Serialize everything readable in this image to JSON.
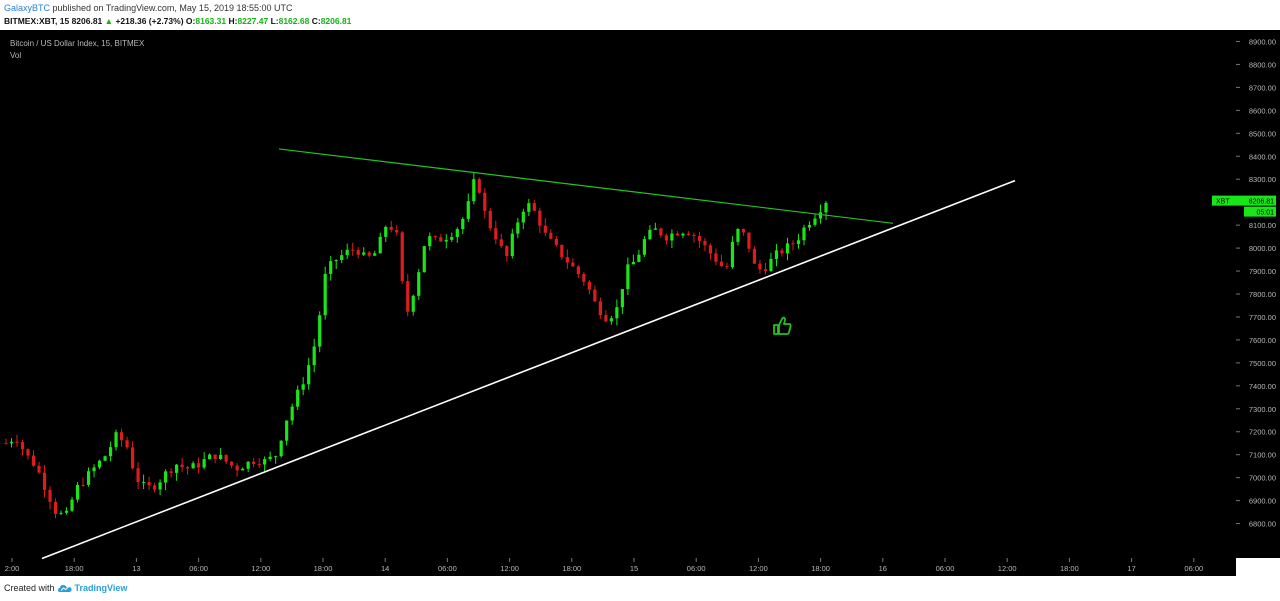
{
  "header": {
    "publisher": "GalaxyBTC",
    "published_text": " published on TradingView.com, May 15, 2019 18:55:00 UTC",
    "symbol": "BITMEX:XBT, 15",
    "last": "8206.81",
    "change_arrow": "▲",
    "change": "+218.36 (+2.73%)",
    "open_label": "O:",
    "open": "8163.31",
    "high_label": "H:",
    "high": "8227.47",
    "low_label": "L:",
    "low": "8162.68",
    "close_label": "C:",
    "close": "8206.81"
  },
  "chart_data": {
    "type": "candlestick",
    "title": "Bitcoin / US Dollar Index, 15, BITMEX",
    "subtitle": "Vol",
    "ylim": [
      6650,
      8950
    ],
    "y_ticks": [
      "6800.00",
      "6900.00",
      "7000.00",
      "7100.00",
      "7200.00",
      "7300.00",
      "7400.00",
      "7500.00",
      "7600.00",
      "7700.00",
      "7800.00",
      "7900.00",
      "8000.00",
      "8100.00",
      "8200.00",
      "8300.00",
      "8400.00",
      "8500.00",
      "8600.00",
      "8700.00",
      "8800.00",
      "8900.00"
    ],
    "x_ticks": [
      "2:00",
      "18:00",
      "13",
      "06:00",
      "12:00",
      "18:00",
      "14",
      "06:00",
      "12:00",
      "18:00",
      "15",
      "06:00",
      "12:00",
      "18:00",
      "16",
      "06:00",
      "12:00",
      "18:00",
      "17",
      "06:00"
    ],
    "price_series": [
      7150,
      7180,
      7100,
      7050,
      6950,
      6850,
      6830,
      6950,
      7000,
      7050,
      7100,
      7180,
      7150,
      7000,
      6950,
      6970,
      7020,
      7060,
      7040,
      7050,
      7080,
      7100,
      7070,
      7040,
      7060,
      7080,
      7070,
      7100,
      7250,
      7350,
      7450,
      7600,
      7900,
      7950,
      7980,
      8000,
      7950,
      7980,
      8100,
      8080,
      7700,
      7850,
      8050,
      8030,
      8050,
      8080,
      8150,
      8320,
      8130,
      8050,
      7950,
      8100,
      8200,
      8150,
      8050,
      8000,
      7950,
      7900,
      7850,
      7750,
      7700,
      7720,
      7900,
      7950,
      8050,
      8080,
      8050,
      8070,
      8080,
      8050,
      8000,
      7950,
      7900,
      8080,
      8050,
      7900,
      7920,
      7970,
      8000,
      8030,
      8100,
      8150,
      8206.81
    ],
    "markers": {
      "last_price_label": "XBT",
      "last_price": "8206.81",
      "countdown": "05:01"
    },
    "colors": {
      "bg": "#000000",
      "up": "#19e619",
      "down": "#e01b1b",
      "trendline_upper": "#22c322",
      "trendline_lower": "#ffffff",
      "axis_text": "#b8b8b8",
      "thumbs_up": "#1ec51e"
    },
    "annotations": [
      "upper descending green trendline",
      "lower ascending white trendline",
      "green thumbs-up icon"
    ]
  },
  "footer": {
    "created_with": "Created with",
    "brand": "TradingView"
  }
}
